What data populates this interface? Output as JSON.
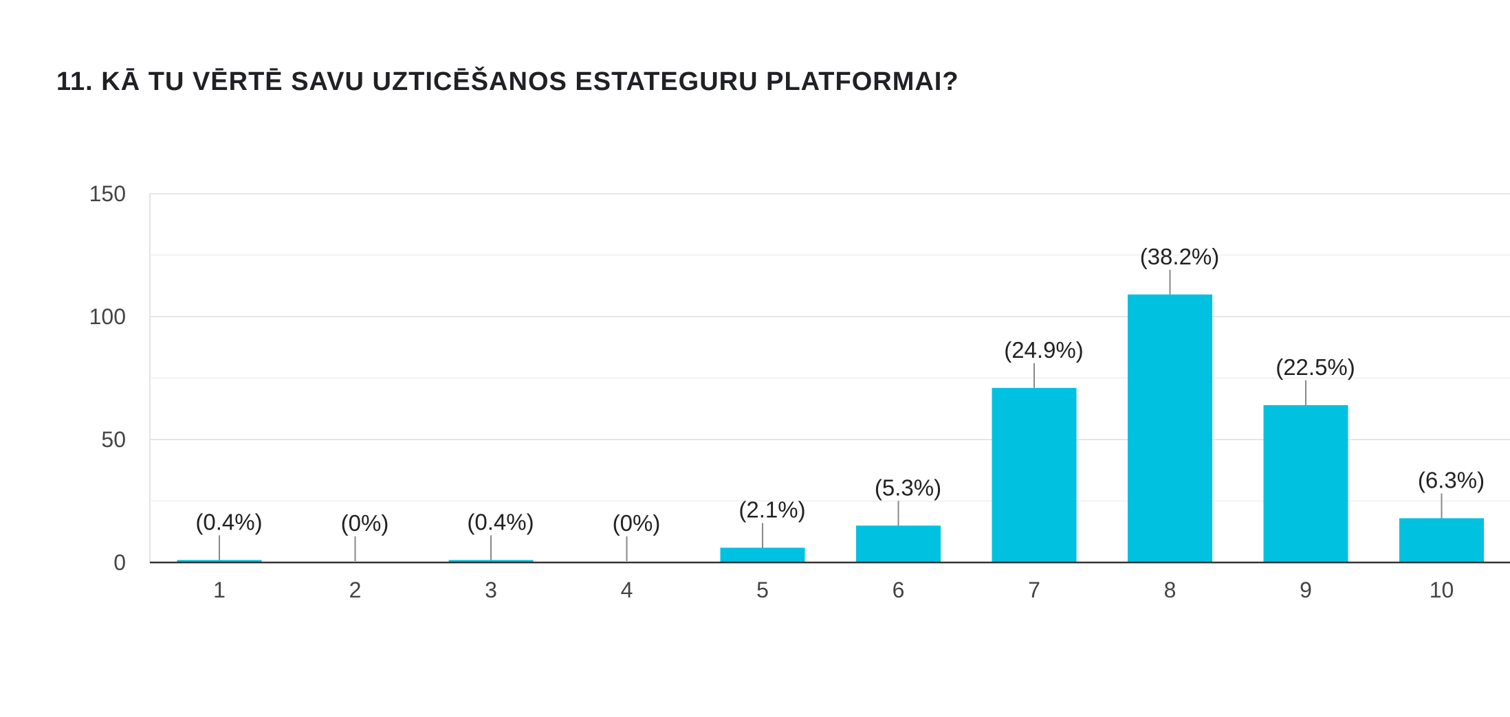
{
  "chart_data": {
    "type": "bar",
    "title": "11. KĀ TU VĒRTĒ SAVU UZTICĒŠANOS ESTATEGURU PLATFORMAI?",
    "categories": [
      "1",
      "2",
      "3",
      "4",
      "5",
      "6",
      "7",
      "8",
      "9",
      "10"
    ],
    "values": [
      1,
      0,
      1,
      0,
      6,
      15,
      71,
      109,
      64,
      18
    ],
    "data_labels": [
      "(0.4%)",
      "(0%)",
      "(0.4%)",
      "(0%)",
      "(2.1%)",
      "(5.3%)",
      "(24.9%)",
      "(38.2%)",
      "(22.5%)",
      "(6.3%)"
    ],
    "y_ticks": [
      0,
      50,
      100,
      150
    ],
    "ylim": [
      0,
      150
    ],
    "grid": true,
    "xlabel": "",
    "ylabel": "",
    "bar_color": "#00C1E0"
  }
}
